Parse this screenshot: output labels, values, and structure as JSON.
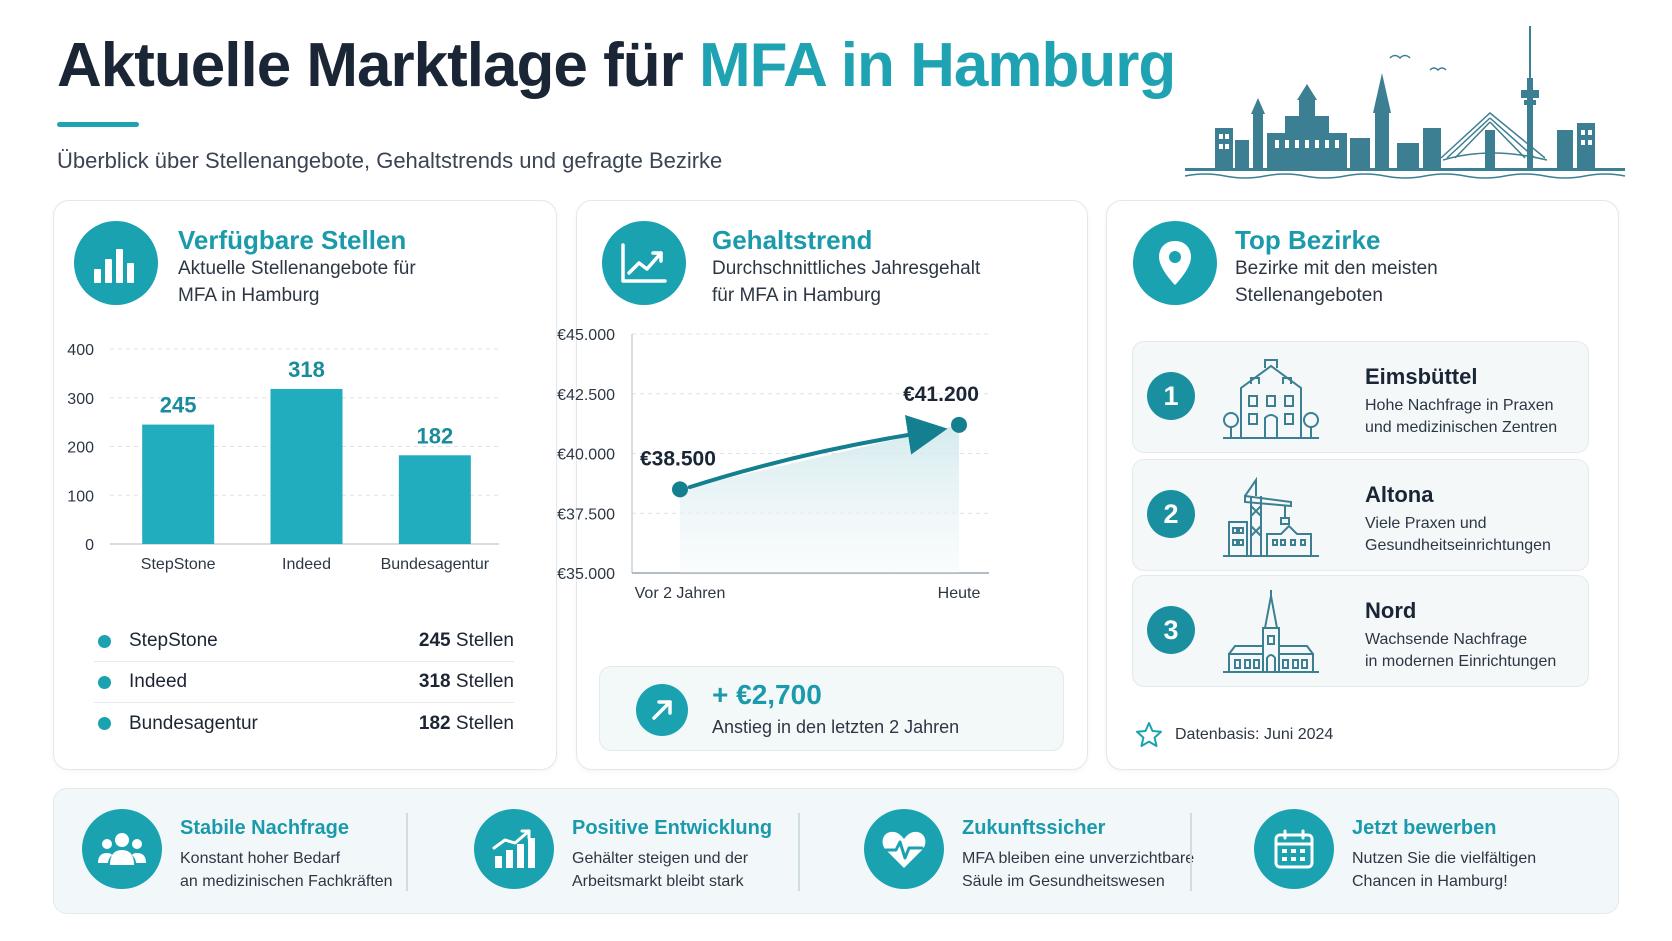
{
  "header": {
    "title_main": "Aktuelle Marktlage für ",
    "title_accent": "MFA in Hamburg",
    "subtitle": "Überblick über Stellenangebote, Gehaltstrends und gefragte Bezirke"
  },
  "colors": {
    "accent": "#1fa3b3",
    "dark": "#1a2535",
    "bar": "#21adbd",
    "line": "#14808f"
  },
  "jobs_card": {
    "icon": "bar-chart-icon",
    "title": "Verfügbare Stellen",
    "subtitle_line1": "Aktuelle Stellenangebote für",
    "subtitle_line2": "MFA in Hamburg",
    "legend": [
      {
        "name": "StepStone",
        "value": "245",
        "unit": " Stellen"
      },
      {
        "name": "Indeed",
        "value": "318",
        "unit": " Stellen"
      },
      {
        "name": "Bundesagentur",
        "value": "182",
        "unit": " Stellen"
      }
    ]
  },
  "salary_card": {
    "icon": "trend-line-icon",
    "title": "Gehaltstrend",
    "subtitle_line1": "Durchschnittliches Jahresgehalt",
    "subtitle_line2": "für MFA in Hamburg",
    "delta_icon": "arrow-up-right-icon",
    "delta_value": "+ €2,700",
    "delta_text": "Anstieg in den letzten 2 Jahren"
  },
  "districts_card": {
    "icon": "location-pin-icon",
    "title": "Top Bezirke",
    "subtitle_line1": "Bezirke mit den meisten",
    "subtitle_line2": "Stellenangeboten",
    "districts": [
      {
        "rank": "1",
        "name": "Eimsbüttel",
        "desc1": "Hohe Nachfrage in Praxen",
        "desc2": "und medizinischen Zentren",
        "icon": "townhouse-icon"
      },
      {
        "rank": "2",
        "name": "Altona",
        "desc1": "Viele Praxen und",
        "desc2": "Gesundheitseinrichtungen",
        "icon": "harbor-crane-icon"
      },
      {
        "rank": "3",
        "name": "Nord",
        "desc1": "Wachsende Nachfrage",
        "desc2": "in modernen Einrichtungen",
        "icon": "church-icon"
      }
    ],
    "source_icon": "star-icon",
    "source": "Datenbasis: Juni 2024"
  },
  "features": [
    {
      "icon": "people-group-icon",
      "title": "Stabile Nachfrage",
      "desc1": "Konstant hoher Bedarf",
      "desc2": "an medizinischen Fachkräften"
    },
    {
      "icon": "growth-chart-icon",
      "title": "Positive Entwicklung",
      "desc1": "Gehälter steigen und der",
      "desc2": "Arbeitsmarkt bleibt stark"
    },
    {
      "icon": "heart-pulse-icon",
      "title": "Zukunftssicher",
      "desc1": "MFA bleiben eine unverzichtbare",
      "desc2": "Säule im Gesundheitswesen"
    },
    {
      "icon": "calendar-icon",
      "title": "Jetzt bewerben",
      "desc1": "Nutzen Sie die vielfältigen",
      "desc2": "Chancen in Hamburg!"
    }
  ],
  "chart_data": [
    {
      "type": "bar",
      "categories": [
        "StepStone",
        "Indeed",
        "Bundesagentur"
      ],
      "values": [
        245,
        318,
        182
      ],
      "value_labels": [
        "245",
        "318",
        "182"
      ],
      "ylim": [
        0,
        400
      ],
      "yticks": [
        0,
        100,
        200,
        300,
        400
      ],
      "ytick_labels": [
        "0",
        "100",
        "200",
        "300",
        "400"
      ],
      "grid": true
    },
    {
      "type": "line",
      "x": [
        "Vor 2 Jahren",
        "Heute"
      ],
      "values": [
        38500,
        41200
      ],
      "value_labels": [
        "€38.500",
        "€41.200"
      ],
      "ylim": [
        35000,
        45000
      ],
      "yticks": [
        35000,
        37500,
        40000,
        42500,
        45000
      ],
      "ytick_labels": [
        "€35.000",
        "€37.500",
        "€40.000",
        "€42.500",
        "€45.000"
      ],
      "grid": true
    }
  ]
}
